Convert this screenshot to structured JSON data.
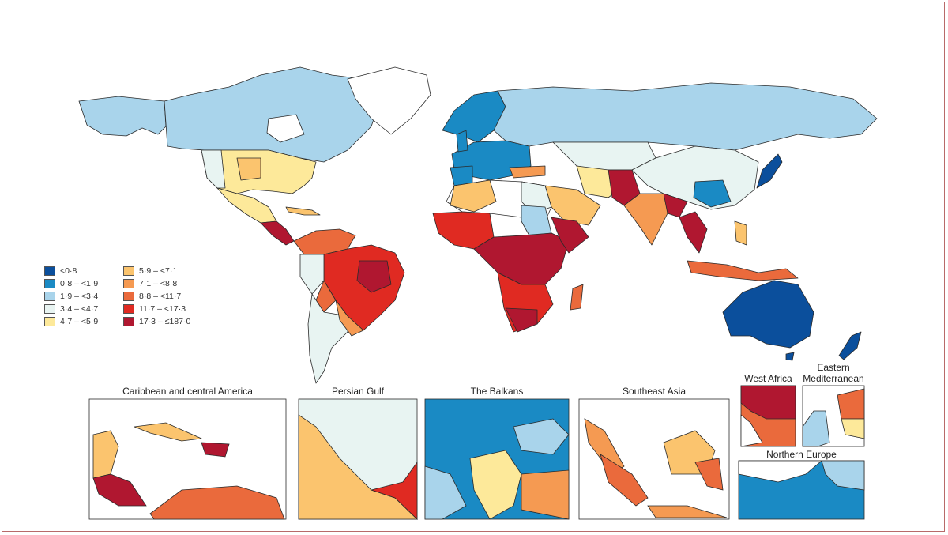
{
  "colors": {
    "land_default": "#ffffff",
    "outline": "#2a2a2a",
    "frame": "#b86a6a"
  },
  "legend": {
    "bins": [
      {
        "label": "<0·8",
        "color": "#0b4f9c"
      },
      {
        "label": "0·8 – <1·9",
        "color": "#1a8ac4"
      },
      {
        "label": "1·9 – <3·4",
        "color": "#a9d4eb"
      },
      {
        "label": "3·4 – <4·7",
        "color": "#e8f4f2"
      },
      {
        "label": "4·7 – <5·9",
        "color": "#fde99a"
      },
      {
        "label": "5·9 – <7·1",
        "color": "#fbc46e"
      },
      {
        "label": "7·1 – <8·8",
        "color": "#f59a52"
      },
      {
        "label": "8·8 – <11·7",
        "color": "#ea6a3c"
      },
      {
        "label": "11·7 – <17·3",
        "color": "#e02a22"
      },
      {
        "label": "17·3 – ≤187·0",
        "color": "#b01730"
      }
    ]
  },
  "insets": [
    {
      "title": "Caribbean and central America"
    },
    {
      "title": "Persian Gulf"
    },
    {
      "title": "The Balkans"
    },
    {
      "title": "Southeast Asia"
    },
    {
      "title": "West Africa"
    },
    {
      "title": "Eastern Mediterranean"
    },
    {
      "title": "Northern Europe"
    }
  ]
}
